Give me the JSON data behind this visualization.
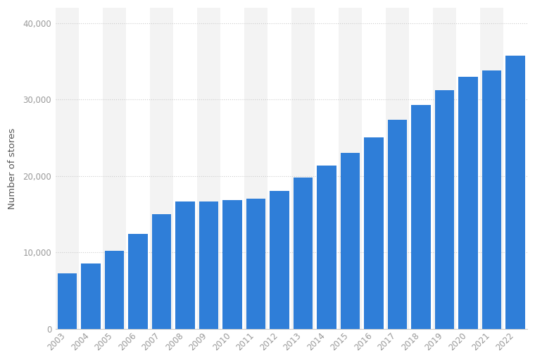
{
  "years": [
    "2003",
    "2004",
    "2005",
    "2006",
    "2007",
    "2008",
    "2009",
    "2010",
    "2011",
    "2012",
    "2013",
    "2014",
    "2015",
    "2016",
    "2017",
    "2018",
    "2019",
    "2020",
    "2021",
    "2022"
  ],
  "values": [
    7225,
    8569,
    10241,
    12440,
    15011,
    16680,
    16635,
    16858,
    17003,
    18066,
    19767,
    21366,
    23043,
    25085,
    27339,
    29324,
    31256,
    32938,
    33833,
    35711
  ],
  "bar_color": "#2f7ed8",
  "ylabel": "Number of stores",
  "ylim": [
    0,
    42000
  ],
  "yticks": [
    0,
    10000,
    20000,
    30000,
    40000
  ],
  "background_color": "#ffffff",
  "plot_background_color": "#ffffff",
  "col_bg_odd": "#f3f3f3",
  "col_bg_even": "#ffffff",
  "grid_color": "#cccccc",
  "tick_label_color": "#999999",
  "axis_label_color": "#555555",
  "bar_width": 0.82
}
